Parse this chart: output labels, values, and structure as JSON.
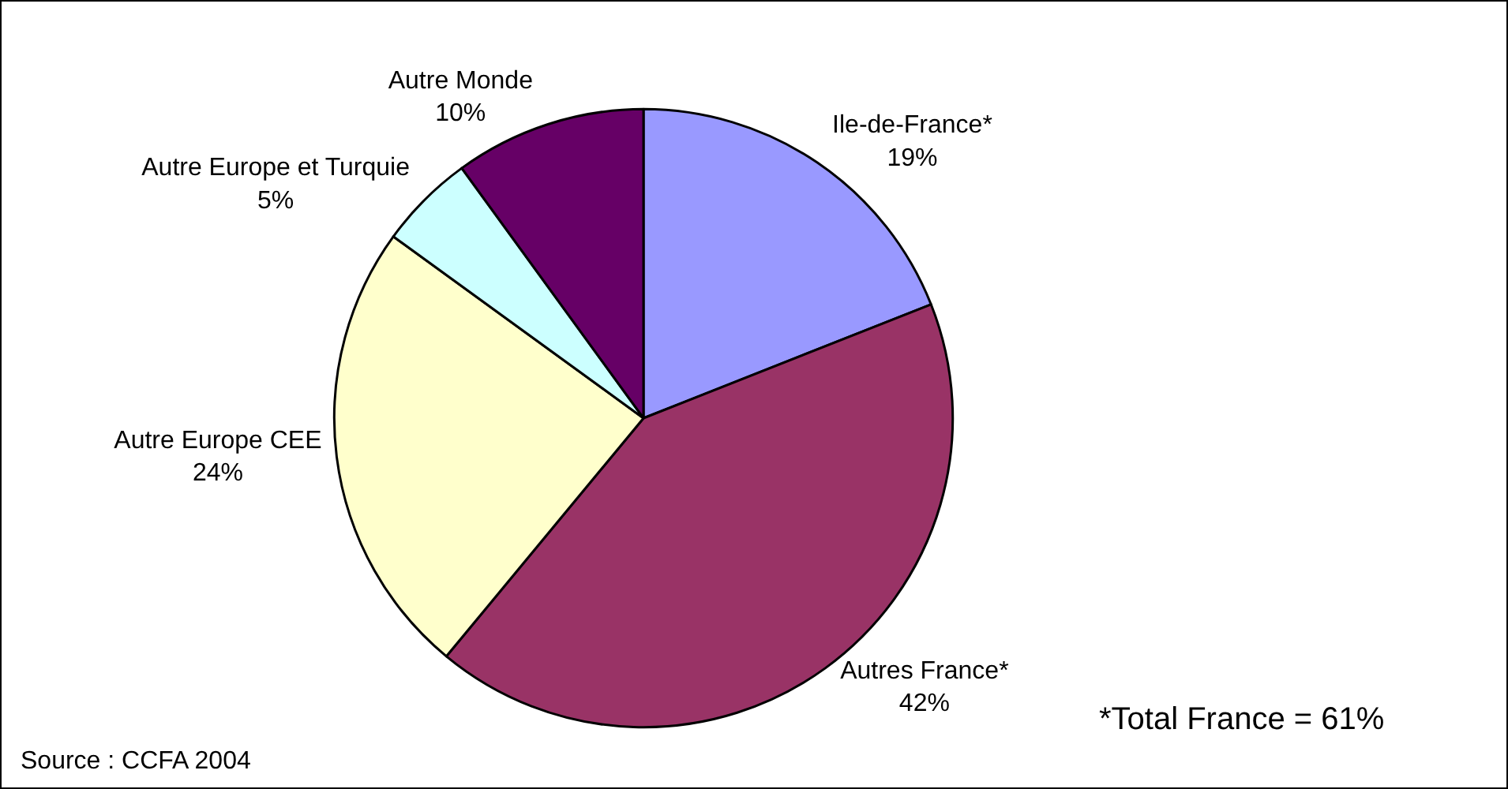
{
  "chart_data": {
    "type": "pie",
    "categories": [
      "Ile-de-France*",
      "Autres France*",
      "Autre Europe CEE",
      "Autre Europe et Turquie",
      "Autre Monde"
    ],
    "values": [
      19,
      42,
      24,
      5,
      10
    ],
    "colors": [
      "#9999ff",
      "#993366",
      "#ffffcc",
      "#ccffff",
      "#660066"
    ],
    "value_labels": [
      "19%",
      "42%",
      "24%",
      "5%",
      "10%"
    ],
    "legend": false,
    "annotations": [
      "Source : CCFA 2004",
      "*Total France = 61%"
    ]
  }
}
